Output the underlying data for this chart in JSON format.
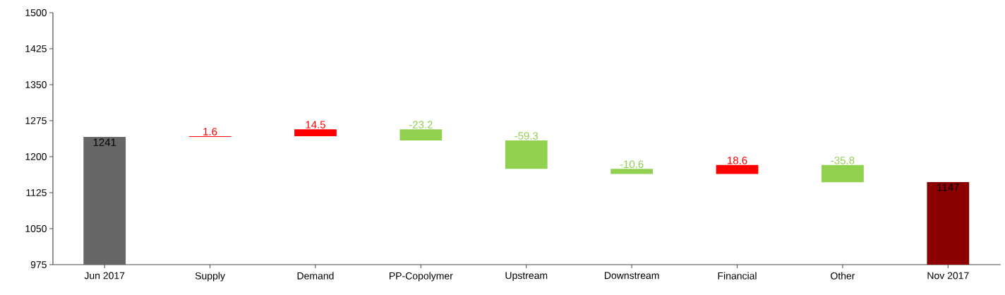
{
  "chart_data": {
    "type": "bar",
    "categories": [
      "Jun 2017",
      "Supply",
      "Demand",
      "PP-Copolymer",
      "Upstream",
      "Downstream",
      "Financial",
      "Other",
      "Nov 2017"
    ],
    "base": [
      975,
      1241,
      1242.6,
      1257.1,
      1233.9,
      1174.6,
      1164,
      1182.6,
      975
    ],
    "values": [
      266,
      1.6,
      14.5,
      -23.2,
      -59.3,
      -10.6,
      18.6,
      -35.8,
      172
    ],
    "value_labels": [
      "1241",
      "1.6",
      "14.5",
      "-23.2",
      "-59.3",
      "-10.6",
      "18.6",
      "-35.8",
      "1147"
    ],
    "colors": [
      "#666666",
      "#ff0000",
      "#ff0000",
      "#92d050",
      "#92d050",
      "#92d050",
      "#ff0000",
      "#92d050",
      "#8b0000"
    ],
    "ylim": [
      975,
      1500
    ],
    "yticks": [
      975,
      1050,
      1125,
      1200,
      1275,
      1350,
      1425,
      1500
    ],
    "grid": false
  }
}
